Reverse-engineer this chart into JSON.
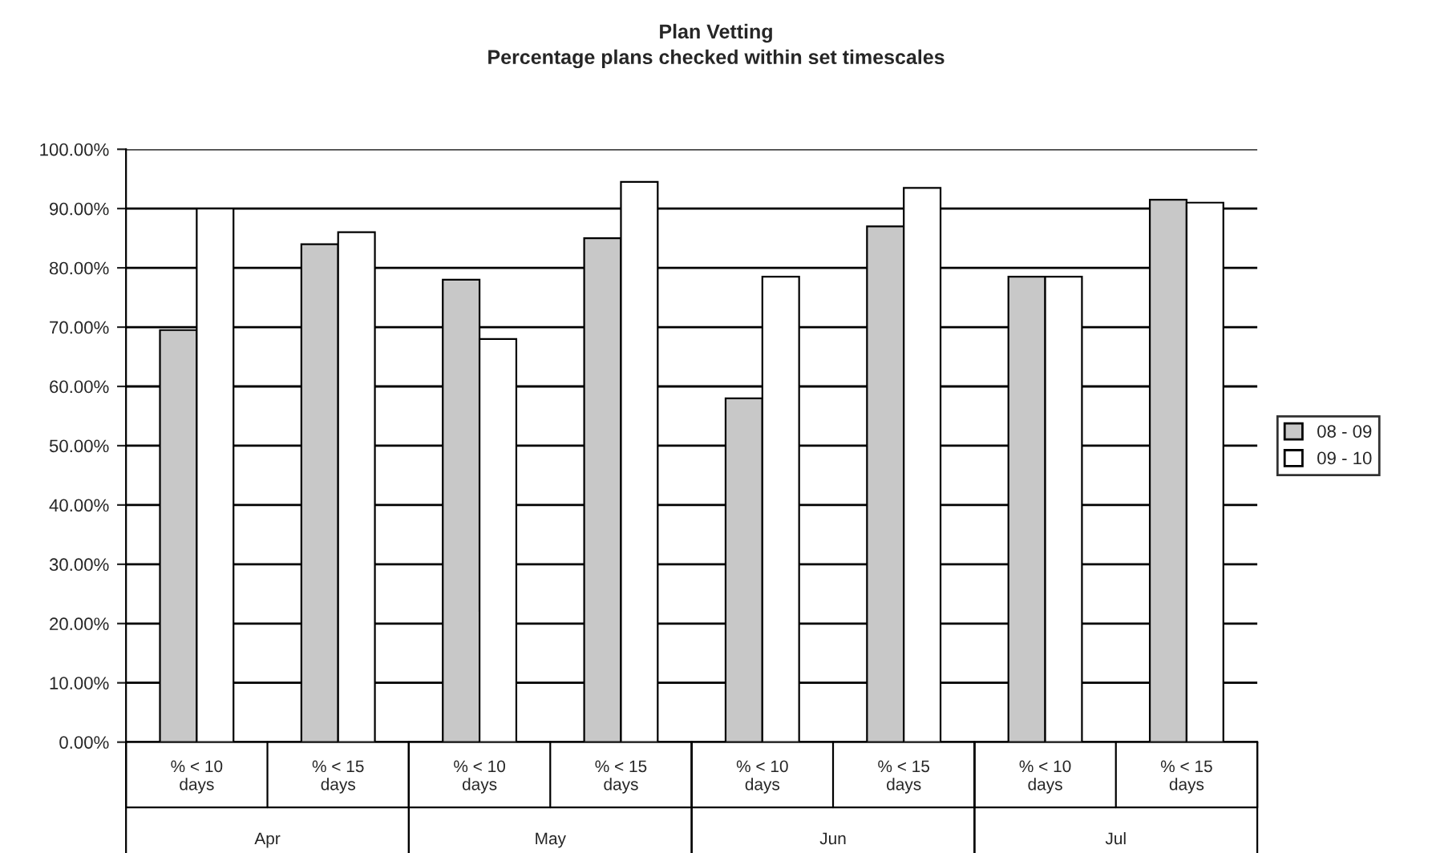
{
  "chart_data": {
    "type": "bar",
    "title": "Plan Vetting",
    "subtitle": "Percentage plans checked within set timescales",
    "categories": [
      "% < 10 days",
      "% < 15 days",
      "% < 10 days",
      "% < 15 days",
      "% < 10 days",
      "% < 15 days",
      "% < 10 days",
      "% < 15 days"
    ],
    "annotations": [
      "Apr",
      "May",
      "Jun",
      "Jul"
    ],
    "series": [
      {
        "name": "08 - 09",
        "color": "#c8c8c8",
        "values": [
          69.5,
          84,
          78,
          85,
          58,
          87,
          78.5,
          91.5
        ]
      },
      {
        "name": "09 - 10",
        "color": "#ffffff",
        "values": [
          90,
          86,
          68,
          94.5,
          78.5,
          93.5,
          78.5,
          91
        ]
      }
    ],
    "ylim": [
      0,
      100
    ],
    "yticks": [
      {
        "value": 0,
        "label": "0.00%"
      },
      {
        "value": 10,
        "label": "10.00%"
      },
      {
        "value": 20,
        "label": "20.00%"
      },
      {
        "value": 30,
        "label": "30.00%"
      },
      {
        "value": 40,
        "label": "40.00%"
      },
      {
        "value": 50,
        "label": "50.00%"
      },
      {
        "value": 60,
        "label": "60.00%"
      },
      {
        "value": 70,
        "label": "70.00%"
      },
      {
        "value": 80,
        "label": "80.00%"
      },
      {
        "value": 90,
        "label": "90.00%"
      },
      {
        "value": 100,
        "label": "100.00%"
      }
    ],
    "grid": "y",
    "legend": "right"
  }
}
